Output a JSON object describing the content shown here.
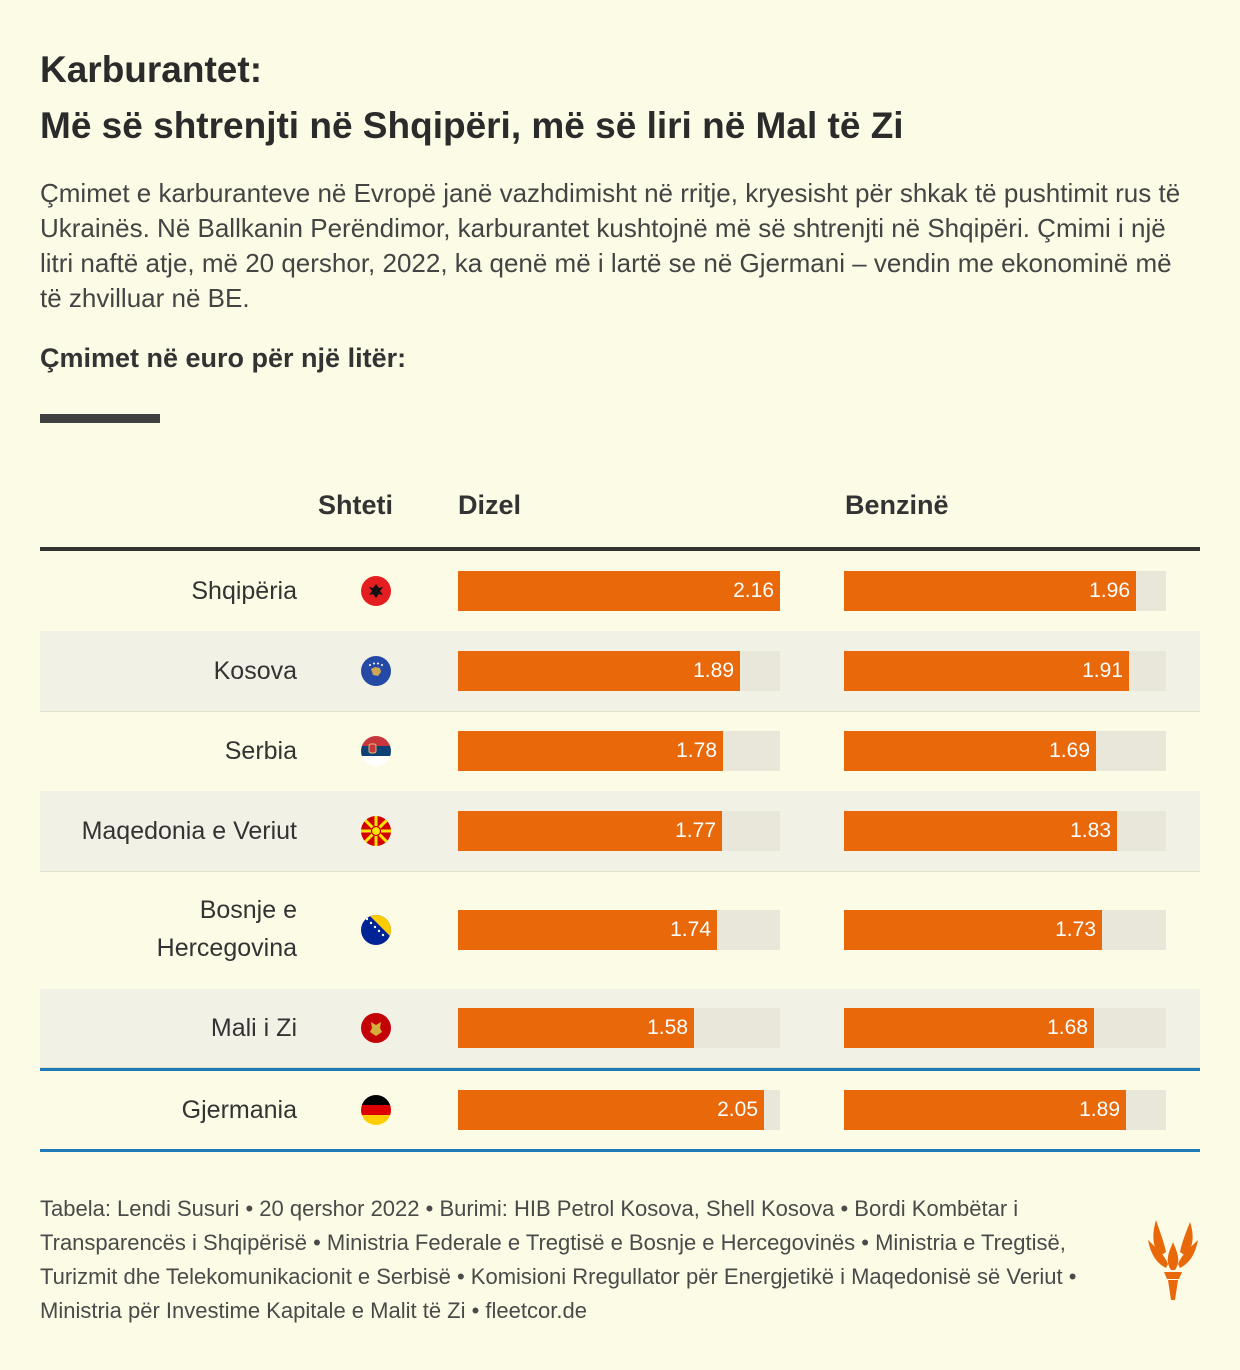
{
  "title_line1": "Karburantet:",
  "title_line2": "Më së shtrenjti në Shqipëri, më së liri në Mal të Zi",
  "description": "Çmimet e karburanteve në Evropë janë vazhdimisht në rritje, kryesisht për shkak të pushtimit rus të Ukrainës. Në Ballkanin Perëndimor, karburantet kushtojnë më së shtrenjti në Shqipëri. Çmimi i një litri naftë atje, më 20 qershor, 2022, ka qenë më i lartë se në Gjermani – vendin me ekonominë më të zhvilluar në BE.",
  "subheading": "Çmimet në euro për një litër:",
  "columns": {
    "country": "Shteti",
    "diesel": "Dizel",
    "petrol": "Benzinë"
  },
  "colors": {
    "bar": "#e8680a",
    "track": "#e8e7da",
    "accent_blue": "#1f7ab8",
    "background": "#fcfbe6"
  },
  "chart_data": {
    "type": "bar",
    "orientation": "horizontal",
    "categories": [
      "Shqipëria",
      "Kosova",
      "Serbia",
      "Maqedonia e Veriut",
      "Bosnje e Hercegovina",
      "Mali i Zi",
      "Gjermania"
    ],
    "series": [
      {
        "name": "Dizel",
        "values": [
          2.16,
          1.89,
          1.78,
          1.77,
          1.74,
          1.58,
          2.05
        ]
      },
      {
        "name": "Benzinë",
        "values": [
          1.96,
          1.91,
          1.69,
          1.83,
          1.73,
          1.68,
          1.89
        ]
      }
    ],
    "xlim": [
      0,
      2.16
    ],
    "value_labels": true,
    "flags": [
      "albania-flag",
      "kosovo-flag",
      "serbia-flag",
      "north-macedonia-flag",
      "bosnia-flag",
      "montenegro-flag",
      "germany-flag"
    ]
  },
  "source": "Tabela: Lendi Susuri • 20 qershor 2022 • Burimi: HIB Petrol Kosova, Shell Kosova • Bordi Kombëtar i Transparencës i Shqipërisë • Ministria Federale e Tregtisë e Bosnje e Hercegovinës • Ministria e Tregtisë, Turizmit dhe Telekomunikacionit e Serbisë • Komisioni Rregullator për Energjetikë i Maqedonisë së Veriut • Ministria për Investime Kapitale e Malit të Zi • fleetcor.de",
  "logo": "rfe-torch-logo"
}
